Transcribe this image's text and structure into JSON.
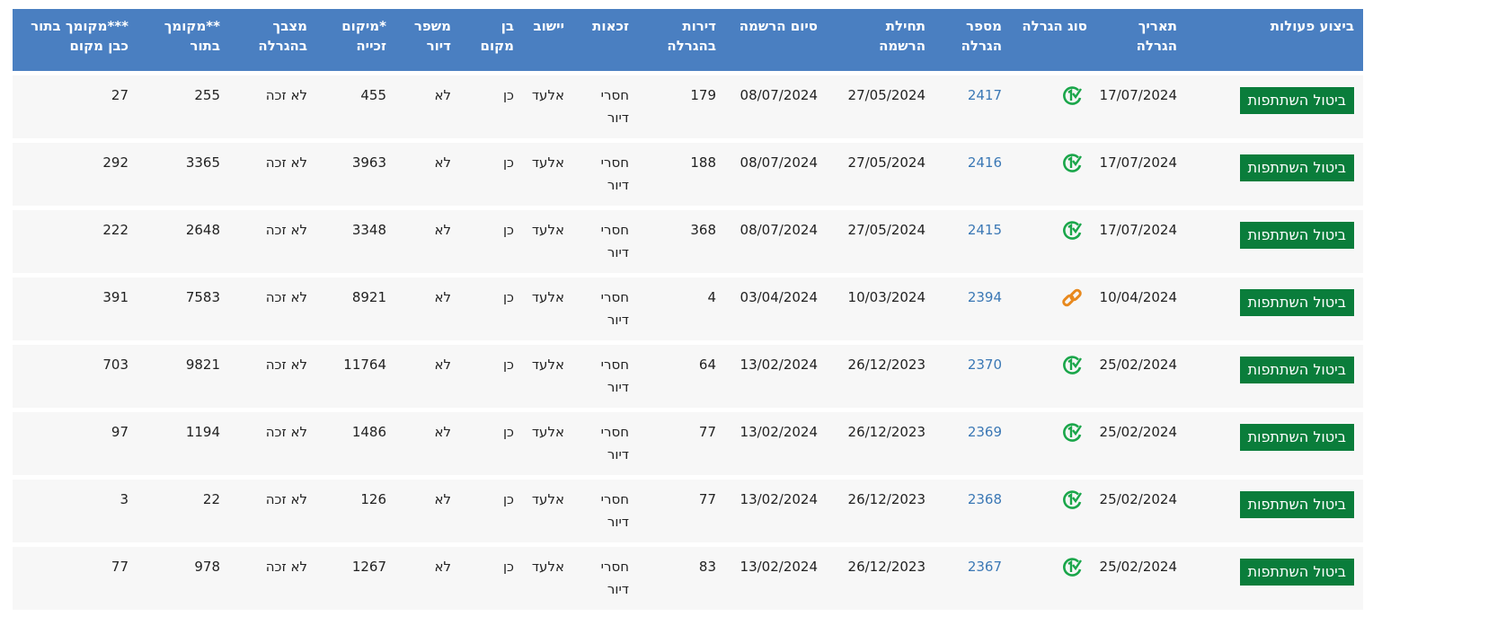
{
  "colors": {
    "header": "#4a7fc1",
    "button": "#0a7d3b",
    "link": "#3b78b5",
    "lottery_icon": "#1aa64a",
    "link_icon": "#e8891e"
  },
  "headers": [
    "ביצוע פעולות",
    "תאריך הגרלה",
    "סוג הגרלה",
    "מספר הגרלה",
    "תחילת הרשמה",
    "סיום הרשמה",
    "דירות בהגרלה",
    "זכאות",
    "יישוב",
    "בן מקום",
    "משפר דיור",
    "*מיקום זכייה",
    "מצבך בהגרלה",
    "**מקומך בתור",
    "***מקומך בתור כבן מקום"
  ],
  "rows": [
    {
      "action": "ביטול השתתפות",
      "date": "17/07/2024",
      "type_icon": "lottery-check-icon",
      "number": "2417",
      "start": "27/05/2024",
      "end": "08/07/2024",
      "apartments": "179",
      "eligibility": "חסרי דיור",
      "settlement": "אלעד",
      "local": "כן",
      "improver": "לא",
      "position": "455",
      "status": "לא זכה",
      "rank": "255",
      "local_rank": "27"
    },
    {
      "action": "ביטול השתתפות",
      "date": "17/07/2024",
      "type_icon": "lottery-check-icon",
      "number": "2416",
      "start": "27/05/2024",
      "end": "08/07/2024",
      "apartments": "188",
      "eligibility": "חסרי דיור",
      "settlement": "אלעד",
      "local": "כן",
      "improver": "לא",
      "position": "3963",
      "status": "לא זכה",
      "rank": "3365",
      "local_rank": "292"
    },
    {
      "action": "ביטול השתתפות",
      "date": "17/07/2024",
      "type_icon": "lottery-check-icon",
      "number": "2415",
      "start": "27/05/2024",
      "end": "08/07/2024",
      "apartments": "368",
      "eligibility": "חסרי דיור",
      "settlement": "אלעד",
      "local": "כן",
      "improver": "לא",
      "position": "3348",
      "status": "לא זכה",
      "rank": "2648",
      "local_rank": "222"
    },
    {
      "action": "ביטול השתתפות",
      "date": "10/04/2024",
      "type_icon": "link-icon",
      "number": "2394",
      "start": "10/03/2024",
      "end": "03/04/2024",
      "apartments": "4",
      "eligibility": "חסרי דיור",
      "settlement": "אלעד",
      "local": "כן",
      "improver": "לא",
      "position": "8921",
      "status": "לא זכה",
      "rank": "7583",
      "local_rank": "391"
    },
    {
      "action": "ביטול השתתפות",
      "date": "25/02/2024",
      "type_icon": "lottery-check-icon",
      "number": "2370",
      "start": "26/12/2023",
      "end": "13/02/2024",
      "apartments": "64",
      "eligibility": "חסרי דיור",
      "settlement": "אלעד",
      "local": "כן",
      "improver": "לא",
      "position": "11764",
      "status": "לא זכה",
      "rank": "9821",
      "local_rank": "703"
    },
    {
      "action": "ביטול השתתפות",
      "date": "25/02/2024",
      "type_icon": "lottery-check-icon",
      "number": "2369",
      "start": "26/12/2023",
      "end": "13/02/2024",
      "apartments": "77",
      "eligibility": "חסרי דיור",
      "settlement": "אלעד",
      "local": "כן",
      "improver": "לא",
      "position": "1486",
      "status": "לא זכה",
      "rank": "1194",
      "local_rank": "97"
    },
    {
      "action": "ביטול השתתפות",
      "date": "25/02/2024",
      "type_icon": "lottery-check-icon",
      "number": "2368",
      "start": "26/12/2023",
      "end": "13/02/2024",
      "apartments": "77",
      "eligibility": "חסרי דיור",
      "settlement": "אלעד",
      "local": "כן",
      "improver": "לא",
      "position": "126",
      "status": "לא זכה",
      "rank": "22",
      "local_rank": "3"
    },
    {
      "action": "ביטול השתתפות",
      "date": "25/02/2024",
      "type_icon": "lottery-check-icon",
      "number": "2367",
      "start": "26/12/2023",
      "end": "13/02/2024",
      "apartments": "83",
      "eligibility": "חסרי דיור",
      "settlement": "אלעד",
      "local": "כן",
      "improver": "לא",
      "position": "1267",
      "status": "לא זכה",
      "rank": "978",
      "local_rank": "77"
    }
  ]
}
